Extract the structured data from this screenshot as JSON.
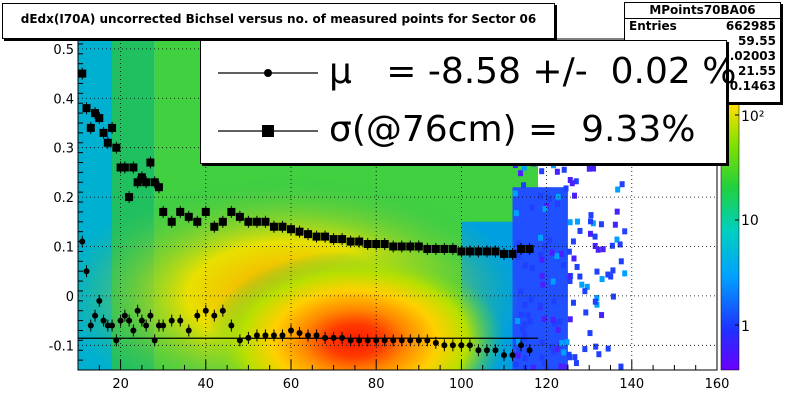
{
  "title": "dEdx(I70A) uncorrected Bichsel versus no. of measured points for Sector 06",
  "stats": {
    "name": "MPoints70BA06",
    "rows": [
      {
        "label": "Entries",
        "value": "662985"
      },
      {
        "label": "",
        "value": "59.55"
      },
      {
        "label": "",
        "value": "0.02003"
      },
      {
        "label": "",
        "value": "21.55"
      },
      {
        "label": "",
        "value": "0.1463"
      }
    ]
  },
  "legend": [
    {
      "marker": "circle",
      "text": "μ   = -8.58 +/-  0.02 %"
    },
    {
      "marker": "square",
      "text": "σ(@76cm) =  9.33%"
    }
  ],
  "colors": {
    "marker": "#000000",
    "frame": "#000000",
    "background": "#ffffff"
  },
  "chart_data": {
    "type": "heatmap",
    "xlim": [
      10,
      160
    ],
    "ylim": [
      -0.15,
      0.52
    ],
    "x_ticks": [
      20,
      40,
      60,
      80,
      100,
      120,
      140,
      160
    ],
    "y_ticks": [
      -0.1,
      0,
      0.1,
      0.2,
      0.3,
      0.4,
      0.5
    ],
    "y_tick_labels": [
      "-0.1",
      "0",
      "0.1",
      "0.2",
      "0.3",
      "0.4",
      "0.5"
    ],
    "z_scale": "log",
    "z_tick_labels": [
      "1",
      "10",
      "10²"
    ],
    "grid": true,
    "density_peak": {
      "x": 75,
      "y": -0.09
    },
    "series": [
      {
        "marker": "square",
        "x": [
          11,
          12,
          13,
          14,
          15,
          16,
          17,
          18,
          19,
          20,
          21,
          22,
          23,
          24,
          25,
          26,
          27,
          28,
          29,
          30,
          32,
          34,
          36,
          38,
          40,
          42,
          44,
          46,
          48,
          50,
          52,
          54,
          56,
          58,
          60,
          62,
          64,
          66,
          68,
          70,
          72,
          74,
          76,
          78,
          80,
          82,
          84,
          86,
          88,
          90,
          92,
          94,
          96,
          98,
          100,
          102,
          104,
          106,
          108,
          110,
          112,
          114,
          116
        ],
        "y": [
          0.45,
          0.38,
          0.34,
          0.37,
          0.36,
          0.33,
          0.31,
          0.34,
          0.3,
          0.26,
          0.26,
          0.2,
          0.26,
          0.23,
          0.24,
          0.23,
          0.27,
          0.23,
          0.22,
          0.17,
          0.15,
          0.17,
          0.16,
          0.15,
          0.17,
          0.14,
          0.15,
          0.17,
          0.16,
          0.15,
          0.15,
          0.15,
          0.14,
          0.14,
          0.135,
          0.13,
          0.125,
          0.12,
          0.12,
          0.115,
          0.115,
          0.11,
          0.11,
          0.105,
          0.105,
          0.105,
          0.1,
          0.1,
          0.1,
          0.1,
          0.095,
          0.095,
          0.095,
          0.095,
          0.09,
          0.09,
          0.09,
          0.09,
          0.09,
          0.085,
          0.085,
          0.095,
          0.095
        ]
      },
      {
        "marker": "circle",
        "x": [
          11,
          12,
          13,
          14,
          15,
          16,
          17,
          18,
          19,
          20,
          21,
          22,
          23,
          24,
          25,
          26,
          27,
          28,
          29,
          30,
          32,
          34,
          36,
          38,
          40,
          42,
          44,
          46,
          48,
          50,
          52,
          54,
          56,
          58,
          60,
          62,
          64,
          66,
          68,
          70,
          72,
          74,
          76,
          78,
          80,
          82,
          84,
          86,
          88,
          90,
          92,
          94,
          96,
          98,
          100,
          102,
          104,
          106,
          108,
          110,
          112,
          114,
          116
        ],
        "y": [
          0.11,
          0.05,
          -0.06,
          -0.04,
          -0.01,
          -0.05,
          -0.06,
          -0.06,
          -0.09,
          -0.05,
          -0.04,
          -0.05,
          -0.07,
          -0.03,
          -0.05,
          -0.06,
          -0.04,
          -0.09,
          -0.06,
          -0.06,
          -0.05,
          -0.05,
          -0.07,
          -0.04,
          -0.03,
          -0.04,
          -0.03,
          -0.06,
          -0.09,
          -0.085,
          -0.08,
          -0.08,
          -0.08,
          -0.08,
          -0.07,
          -0.075,
          -0.08,
          -0.08,
          -0.085,
          -0.085,
          -0.085,
          -0.09,
          -0.09,
          -0.09,
          -0.09,
          -0.09,
          -0.09,
          -0.09,
          -0.09,
          -0.09,
          -0.09,
          -0.095,
          -0.1,
          -0.1,
          -0.1,
          -0.1,
          -0.11,
          -0.11,
          -0.11,
          -0.12,
          -0.12,
          -0.1,
          -0.11
        ]
      }
    ]
  }
}
